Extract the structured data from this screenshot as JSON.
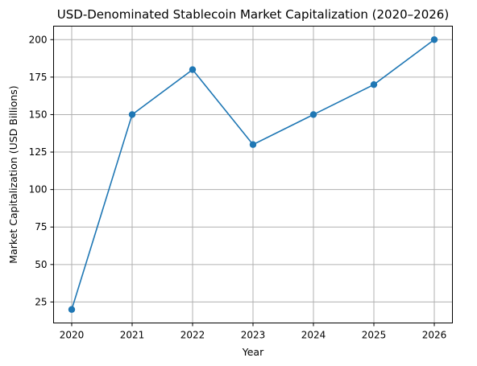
{
  "chart_data": {
    "type": "line",
    "title": "USD-Denominated Stablecoin Market Capitalization (2020–2026)",
    "xlabel": "Year",
    "ylabel": "Market Capitalization (USD Billions)",
    "x": [
      2020,
      2021,
      2022,
      2023,
      2024,
      2025,
      2026
    ],
    "series": [
      {
        "values": [
          20,
          150,
          180,
          130,
          150,
          170,
          200
        ],
        "color": "#1f77b4",
        "marker": "circle"
      }
    ],
    "xticks": [
      "2020",
      "2021",
      "2022",
      "2023",
      "2024",
      "2025",
      "2026"
    ],
    "yticks": [
      25,
      50,
      75,
      100,
      125,
      150,
      175,
      200
    ],
    "xlim": [
      2019.7,
      2026.3
    ],
    "ylim": [
      11,
      209
    ],
    "grid": true,
    "legend": "none"
  }
}
